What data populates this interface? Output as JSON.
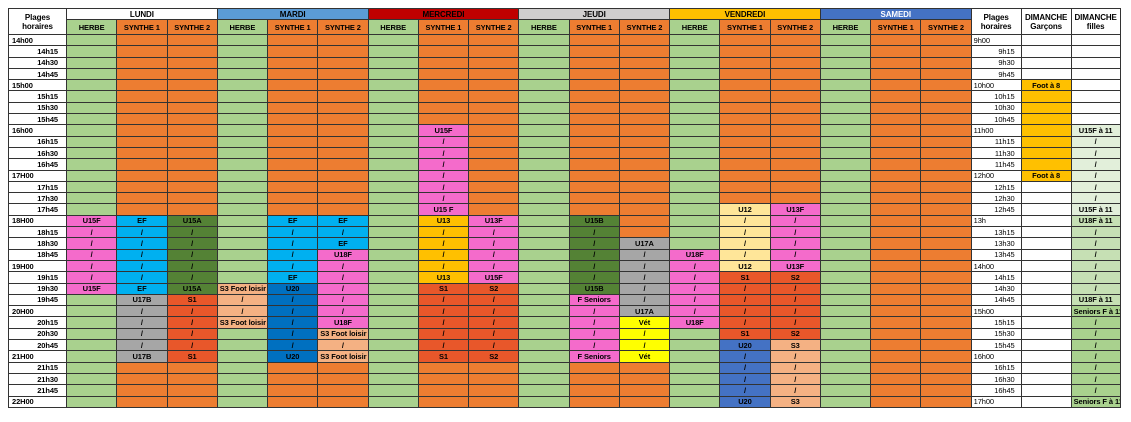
{
  "header": {
    "time_label": "Plages horaires",
    "days": [
      {
        "name": "LUNDI",
        "color": "#ffffff"
      },
      {
        "name": "MARDI",
        "color": "#5b9bd5"
      },
      {
        "name": "MERCREDI",
        "color": "#c00000"
      },
      {
        "name": "JEUDI",
        "color": "#d0cece"
      },
      {
        "name": "VENDREDI",
        "color": "#ffc000"
      },
      {
        "name": "SAMEDI",
        "color": "#4472c4"
      }
    ],
    "subcolumns": [
      "HERBE",
      "SYNTHE 1",
      "SYNTHE 2"
    ],
    "sub_fills": "goo",
    "sunday_time_label": "Plages horaires",
    "sunday_columns": [
      "DIMANCHE Garçons",
      "DIMANCHE filles"
    ]
  },
  "palette": {
    "g": "#a9d18e",
    "o": "#ed7d31",
    "p": "#f46bcb",
    "b": "#00b0f0",
    "d": "#548235",
    "y": "#ffc000",
    "l": "#ffe699",
    "a": "#a6a6a6",
    "r": "#e8572a",
    "s": "#f4b183",
    "n": "#0070c0",
    "u": "#4472c4",
    "v": "#ffff00",
    "w": "#ffffff",
    "1": "#e2efda",
    "2": "#c6e0b4"
  },
  "rows": [
    {
      "time": "14h00",
      "cells": {},
      "fills": "googoogoogoogoogoo",
      "sun_time": "9h00",
      "sun_cells": {},
      "sun_fills": "ww"
    },
    {
      "time": "14h15",
      "cells": {},
      "fills": "googoogoogoogoogoo",
      "sun_time": "9h15",
      "sun_cells": {},
      "sun_fills": "ww"
    },
    {
      "time": "14h30",
      "cells": {},
      "fills": "googoogoogoogoogoo",
      "sun_time": "9h30",
      "sun_cells": {},
      "sun_fills": "ww"
    },
    {
      "time": "14h45",
      "cells": {},
      "fills": "googoogoogoogoogoo",
      "sun_time": "9h45",
      "sun_cells": {},
      "sun_fills": "ww"
    },
    {
      "time": "15h00",
      "cells": {},
      "fills": "googoogoogoogoogoo",
      "sun_time": "10h00",
      "sun_cells": {
        "0": "Foot à 8"
      },
      "sun_fills": "yw"
    },
    {
      "time": "15h15",
      "cells": {},
      "fills": "googoogoogoogoogoo",
      "sun_time": "10h15",
      "sun_cells": {},
      "sun_fills": "yw"
    },
    {
      "time": "15h30",
      "cells": {},
      "fills": "googoogoogoogoogoo",
      "sun_time": "10h30",
      "sun_cells": {},
      "sun_fills": "yw"
    },
    {
      "time": "15h45",
      "cells": {},
      "fills": "googoogoogoogoogoo",
      "sun_time": "10h45",
      "sun_cells": {},
      "sun_fills": "yw"
    },
    {
      "time": "16h00",
      "cells": {
        "7": "U15F"
      },
      "fills": "googoogpogoogoogoo",
      "sun_time": "11h00",
      "sun_cells": {
        "1": "U15F à 11"
      },
      "sun_fills": "y1"
    },
    {
      "time": "16h15",
      "cells": {
        "7": "/"
      },
      "fills": "googoogpogoogoogoo",
      "sun_time": "11h15",
      "sun_cells": {
        "1": "/"
      },
      "sun_fills": "y1"
    },
    {
      "time": "16h30",
      "cells": {
        "7": "/"
      },
      "fills": "googoogpogoogoogoo",
      "sun_time": "11h30",
      "sun_cells": {
        "1": "/"
      },
      "sun_fills": "y1"
    },
    {
      "time": "16h45",
      "cells": {
        "7": "/"
      },
      "fills": "googoogpogoogoogoo",
      "sun_time": "11h45",
      "sun_cells": {
        "1": "/"
      },
      "sun_fills": "y1"
    },
    {
      "time": "17H00",
      "cells": {
        "7": "/"
      },
      "fills": "googoogpogoogoogoo",
      "sun_time": "12h00",
      "sun_cells": {
        "0": "Foot à 8",
        "1": "/"
      },
      "sun_fills": "y1"
    },
    {
      "time": "17h15",
      "cells": {
        "7": "/"
      },
      "fills": "googoogpogoogoogoo",
      "sun_time": "12h15",
      "sun_cells": {
        "1": "/"
      },
      "sun_fills": "w1"
    },
    {
      "time": "17h30",
      "cells": {
        "7": "/"
      },
      "fills": "googoogpogoogoogoo",
      "sun_time": "12h30",
      "sun_cells": {
        "1": "/"
      },
      "sun_fills": "w1"
    },
    {
      "time": "17h45",
      "cells": {
        "7": "U15 F",
        "13": "U12",
        "14": "U13F"
      },
      "fills": "googoogpogooglpgoo",
      "sun_time": "12h45",
      "sun_cells": {
        "1": "U15F à 11"
      },
      "sun_fills": "w1"
    },
    {
      "time": "18H00",
      "cells": {
        "0": "U15F",
        "1": "EF",
        "2": "U15A",
        "4": "EF",
        "5": "EF",
        "7": "U13",
        "8": "U13F",
        "10": "U15B",
        "13": "/",
        "14": "/"
      },
      "fills": "pbdgbbgypgdoglpgoo",
      "sun_time": "13h",
      "sun_cells": {
        "1": "U18F à 11"
      },
      "sun_fills": "w2"
    },
    {
      "time": "18h15",
      "cells": {
        "0": "/",
        "1": "/",
        "2": "/",
        "4": "/",
        "5": "/",
        "7": "/",
        "8": "/",
        "10": "/",
        "13": "/",
        "14": "/"
      },
      "fills": "pbdgbbgypgdoglpgoo",
      "sun_time": "13h15",
      "sun_cells": {
        "1": "/"
      },
      "sun_fills": "w2"
    },
    {
      "time": "18h30",
      "cells": {
        "0": "/",
        "1": "/",
        "2": "/",
        "4": "/",
        "5": "EF",
        "7": "/",
        "8": "/",
        "10": "/",
        "11": "U17A",
        "13": "/",
        "14": "/"
      },
      "fills": "pbdgbbgypgdaglpgoo",
      "sun_time": "13h30",
      "sun_cells": {
        "1": "/"
      },
      "sun_fills": "w2"
    },
    {
      "time": "18h45",
      "cells": {
        "0": "/",
        "1": "/",
        "2": "/",
        "4": "/",
        "5": "U18F",
        "7": "/",
        "8": "/",
        "10": "/",
        "11": "/",
        "12": "U18F",
        "13": "/",
        "14": "/"
      },
      "fills": "pbdgbpgypgdaplpgoo",
      "sun_time": "13h45",
      "sun_cells": {
        "1": "/"
      },
      "sun_fills": "w2"
    },
    {
      "time": "19H00",
      "cells": {
        "0": "/",
        "1": "/",
        "2": "/",
        "4": "/",
        "5": "/",
        "7": "/",
        "8": "/",
        "10": "/",
        "11": "/",
        "12": "/",
        "13": "U12",
        "14": "U13F"
      },
      "fills": "pbdgbpgypgdaplpgoo",
      "sun_time": "14h00",
      "sun_cells": {
        "1": "/"
      },
      "sun_fills": "w2"
    },
    {
      "time": "19h15",
      "cells": {
        "0": "/",
        "1": "/",
        "2": "/",
        "4": "EF",
        "5": "/",
        "7": "U13",
        "8": "U15F",
        "10": "/",
        "11": "/",
        "12": "/",
        "13": "S1",
        "14": "S2"
      },
      "fills": "pbdgbpgypgdaprrgoo",
      "sun_time": "14h15",
      "sun_cells": {
        "1": "/"
      },
      "sun_fills": "w2"
    },
    {
      "time": "19h30",
      "cells": {
        "0": "U15F",
        "1": "EF",
        "2": "U15A",
        "3": "S3 Foot loisir",
        "4": "U20",
        "5": "/",
        "7": "S1",
        "8": "S2",
        "10": "U15B",
        "11": "/",
        "12": "/",
        "13": "/",
        "14": "/"
      },
      "fills": "pbdsnpgrrgdaprrgoo",
      "sun_time": "14h30",
      "sun_cells": {
        "1": "/"
      },
      "sun_fills": "w2"
    },
    {
      "time": "19h45",
      "cells": {
        "1": "U17B",
        "2": "S1",
        "3": "/",
        "4": "/",
        "5": "/",
        "7": "/",
        "8": "/",
        "10": "F Seniors",
        "11": "/",
        "12": "/",
        "13": "/",
        "14": "/"
      },
      "fills": "garsnpgrrgpaprrgoo",
      "sun_time": "14h45",
      "sun_cells": {
        "1": "U18F à 11"
      },
      "sun_fills": "w2"
    },
    {
      "time": "20H00",
      "cells": {
        "1": "/",
        "2": "/",
        "3": "/",
        "4": "/",
        "5": "/",
        "7": "/",
        "8": "/",
        "10": "/",
        "11": "U17A",
        "12": "/",
        "13": "/",
        "14": "/"
      },
      "fills": "garsnpgrrgpaprrgoo",
      "sun_time": "15h00",
      "sun_cells": {
        "1": "Seniors F à 11"
      },
      "sun_fills": "wg"
    },
    {
      "time": "20h15",
      "cells": {
        "1": "/",
        "2": "/",
        "3": "S3 Foot loisir",
        "4": "/",
        "5": "U18F",
        "7": "/",
        "8": "/",
        "10": "/",
        "11": "Vét",
        "12": "U18F",
        "13": "/",
        "14": "/"
      },
      "fills": "garsnpgrrgpvprrgoo",
      "sun_time": "15h15",
      "sun_cells": {
        "1": "/"
      },
      "sun_fills": "wg"
    },
    {
      "time": "20h30",
      "cells": {
        "1": "/",
        "2": "/",
        "4": "/",
        "5": "S3 Foot loisir",
        "7": "/",
        "8": "/",
        "10": "/",
        "11": "/",
        "13": "S1",
        "14": "S2"
      },
      "fills": "gargnsgrrgpvgrrgoo",
      "sun_time": "15h30",
      "sun_cells": {
        "1": "/"
      },
      "sun_fills": "wg"
    },
    {
      "time": "20h45",
      "cells": {
        "1": "/",
        "2": "/",
        "4": "/",
        "5": "/",
        "7": "/",
        "8": "/",
        "10": "/",
        "11": "/",
        "13": "U20",
        "14": "S3"
      },
      "fills": "gargnsgrrgpvgusgoo",
      "sun_time": "15h45",
      "sun_cells": {
        "1": "/"
      },
      "sun_fills": "wg"
    },
    {
      "time": "21H00",
      "cells": {
        "1": "U17B",
        "2": "S1",
        "4": "U20",
        "5": "S3 Foot loisir",
        "7": "S1",
        "8": "S2",
        "10": "F Seniors",
        "11": "Vét",
        "13": "/",
        "14": "/"
      },
      "fills": "gargnsgrrgpvgusgoo",
      "sun_time": "16h00",
      "sun_cells": {
        "1": "/"
      },
      "sun_fills": "wg"
    },
    {
      "time": "21h15",
      "cells": {
        "13": "/",
        "14": "/"
      },
      "fills": "googoogoogoogusgoo",
      "sun_time": "16h15",
      "sun_cells": {
        "1": "/"
      },
      "sun_fills": "wg"
    },
    {
      "time": "21h30",
      "cells": {
        "13": "/",
        "14": "/"
      },
      "fills": "googoogoogoogusgoo",
      "sun_time": "16h30",
      "sun_cells": {
        "1": "/"
      },
      "sun_fills": "wg"
    },
    {
      "time": "21h45",
      "cells": {
        "13": "/",
        "14": "/"
      },
      "fills": "googoogoogoogusgoo",
      "sun_time": "16h45",
      "sun_cells": {
        "1": "/"
      },
      "sun_fills": "wg"
    },
    {
      "time": "22H00",
      "cells": {
        "13": "U20",
        "14": "S3"
      },
      "fills": "googoogoogoogusgoo",
      "sun_time": "17h00",
      "sun_cells": {
        "1": "Seniors F à 11"
      },
      "sun_fills": "wg"
    }
  ]
}
